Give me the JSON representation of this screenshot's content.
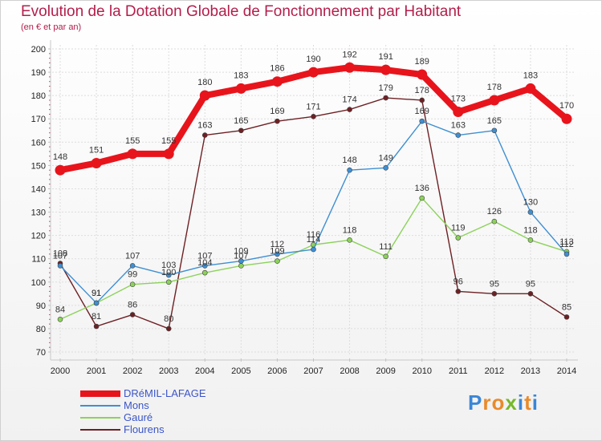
{
  "chart_data": {
    "type": "line",
    "title": "Evolution de la Dotation Globale de Fonctionnement par Habitant",
    "subtitle": "(en € et par an)",
    "categories": [
      "2000",
      "2001",
      "2002",
      "2003",
      "2004",
      "2005",
      "2006",
      "2007",
      "2008",
      "2009",
      "2010",
      "2011",
      "2012",
      "2013",
      "2014"
    ],
    "ylim": [
      70,
      200
    ],
    "yticks": [
      70,
      80,
      90,
      100,
      110,
      120,
      130,
      140,
      150,
      160,
      170,
      180,
      190,
      200
    ],
    "grid": true,
    "legend_position": "bottom-left",
    "series": [
      {
        "name": "DRéMIL-LAFAGE",
        "color": "#e8141c",
        "values": [
          148,
          151,
          155,
          155,
          180,
          183,
          186,
          190,
          192,
          191,
          189,
          173,
          178,
          183,
          170
        ]
      },
      {
        "name": "Mons",
        "color": "#3f8fd2",
        "values": [
          107,
          91,
          107,
          103,
          107,
          109,
          112,
          114,
          148,
          149,
          169,
          163,
          165,
          130,
          112
        ]
      },
      {
        "name": "Gauré",
        "color": "#8cd25a",
        "values": [
          84,
          91,
          99,
          100,
          104,
          107,
          109,
          116,
          118,
          111,
          136,
          119,
          126,
          118,
          113
        ]
      },
      {
        "name": "Flourens",
        "color": "#6e2024",
        "values": [
          108,
          81,
          86,
          80,
          163,
          165,
          169,
          171,
          174,
          179,
          178,
          96,
          95,
          95,
          85
        ]
      }
    ]
  },
  "brand": {
    "text": "Proxiti",
    "letters": [
      {
        "ch": "P",
        "color": "#3a86d6"
      },
      {
        "ch": "r",
        "color": "#e98a2a"
      },
      {
        "ch": "o",
        "color": "#e98a2a"
      },
      {
        "ch": "x",
        "color": "#76b82a"
      },
      {
        "ch": "i",
        "color": "#3a86d6"
      },
      {
        "ch": "t",
        "color": "#e98a2a"
      },
      {
        "ch": "i",
        "color": "#3a86d6"
      }
    ]
  }
}
